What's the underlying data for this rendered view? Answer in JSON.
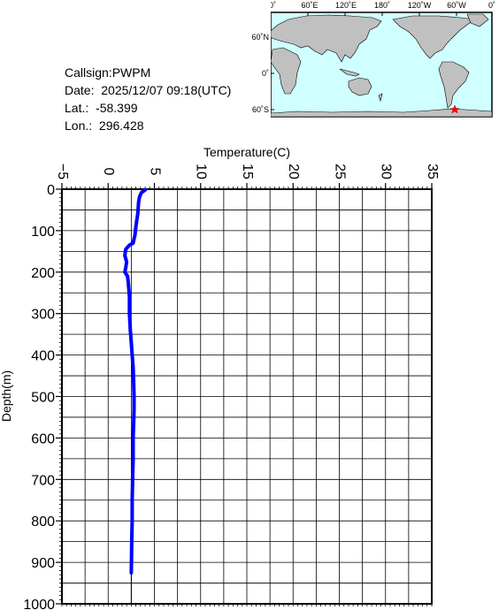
{
  "station": {
    "callsign_label": "Callsign:",
    "callsign": "PWPM",
    "date_label": "Date:",
    "date": "2025/12/07 09:18(UTC)",
    "lat_label": "Lat.:",
    "lat": "-58.399",
    "lon_label": "Lon.:",
    "lon": "296.428"
  },
  "map": {
    "top_labels": [
      "0˚",
      "60˚E",
      "120˚E",
      "180˚",
      "120˚W",
      "60˚W",
      "0˚"
    ],
    "left_labels": [
      "60˚N",
      "0˚",
      "60˚S"
    ],
    "ocean_color": "#cfffff",
    "land_color": "#c0c0c0",
    "marker_color": "#ff0000",
    "marker_icon": "star-icon"
  },
  "chart_data": {
    "type": "line",
    "xlabel": "Temperature(C)",
    "ylabel": "Depth(m)",
    "xlim": [
      -5,
      35
    ],
    "ylim": [
      0,
      1000
    ],
    "x_ticks": [
      -5,
      0,
      5,
      10,
      15,
      20,
      25,
      30,
      35
    ],
    "y_ticks": [
      0,
      100,
      200,
      300,
      400,
      500,
      600,
      700,
      800,
      900,
      1000
    ],
    "y_inverted": true,
    "grid": true,
    "line_color": "#0000ff",
    "series": [
      {
        "temperature": [
          4.0,
          3.6,
          3.4,
          3.3,
          3.25,
          3.2,
          3.1,
          3.0,
          2.95,
          2.9,
          2.8,
          2.7,
          2.3,
          1.9,
          1.8,
          2.0,
          1.9,
          1.8,
          2.1,
          2.2,
          2.3,
          2.3,
          2.4,
          2.5,
          2.6,
          2.7,
          2.75,
          2.8,
          2.8,
          2.75,
          2.7,
          2.7,
          2.65,
          2.6,
          2.6,
          2.55,
          2.5
        ],
        "depth": [
          2,
          8,
          18,
          30,
          45,
          60,
          75,
          90,
          100,
          110,
          120,
          130,
          135,
          145,
          160,
          175,
          190,
          200,
          210,
          230,
          260,
          300,
          340,
          370,
          400,
          430,
          460,
          500,
          530,
          570,
          600,
          650,
          700,
          750,
          800,
          850,
          925
        ]
      }
    ]
  }
}
